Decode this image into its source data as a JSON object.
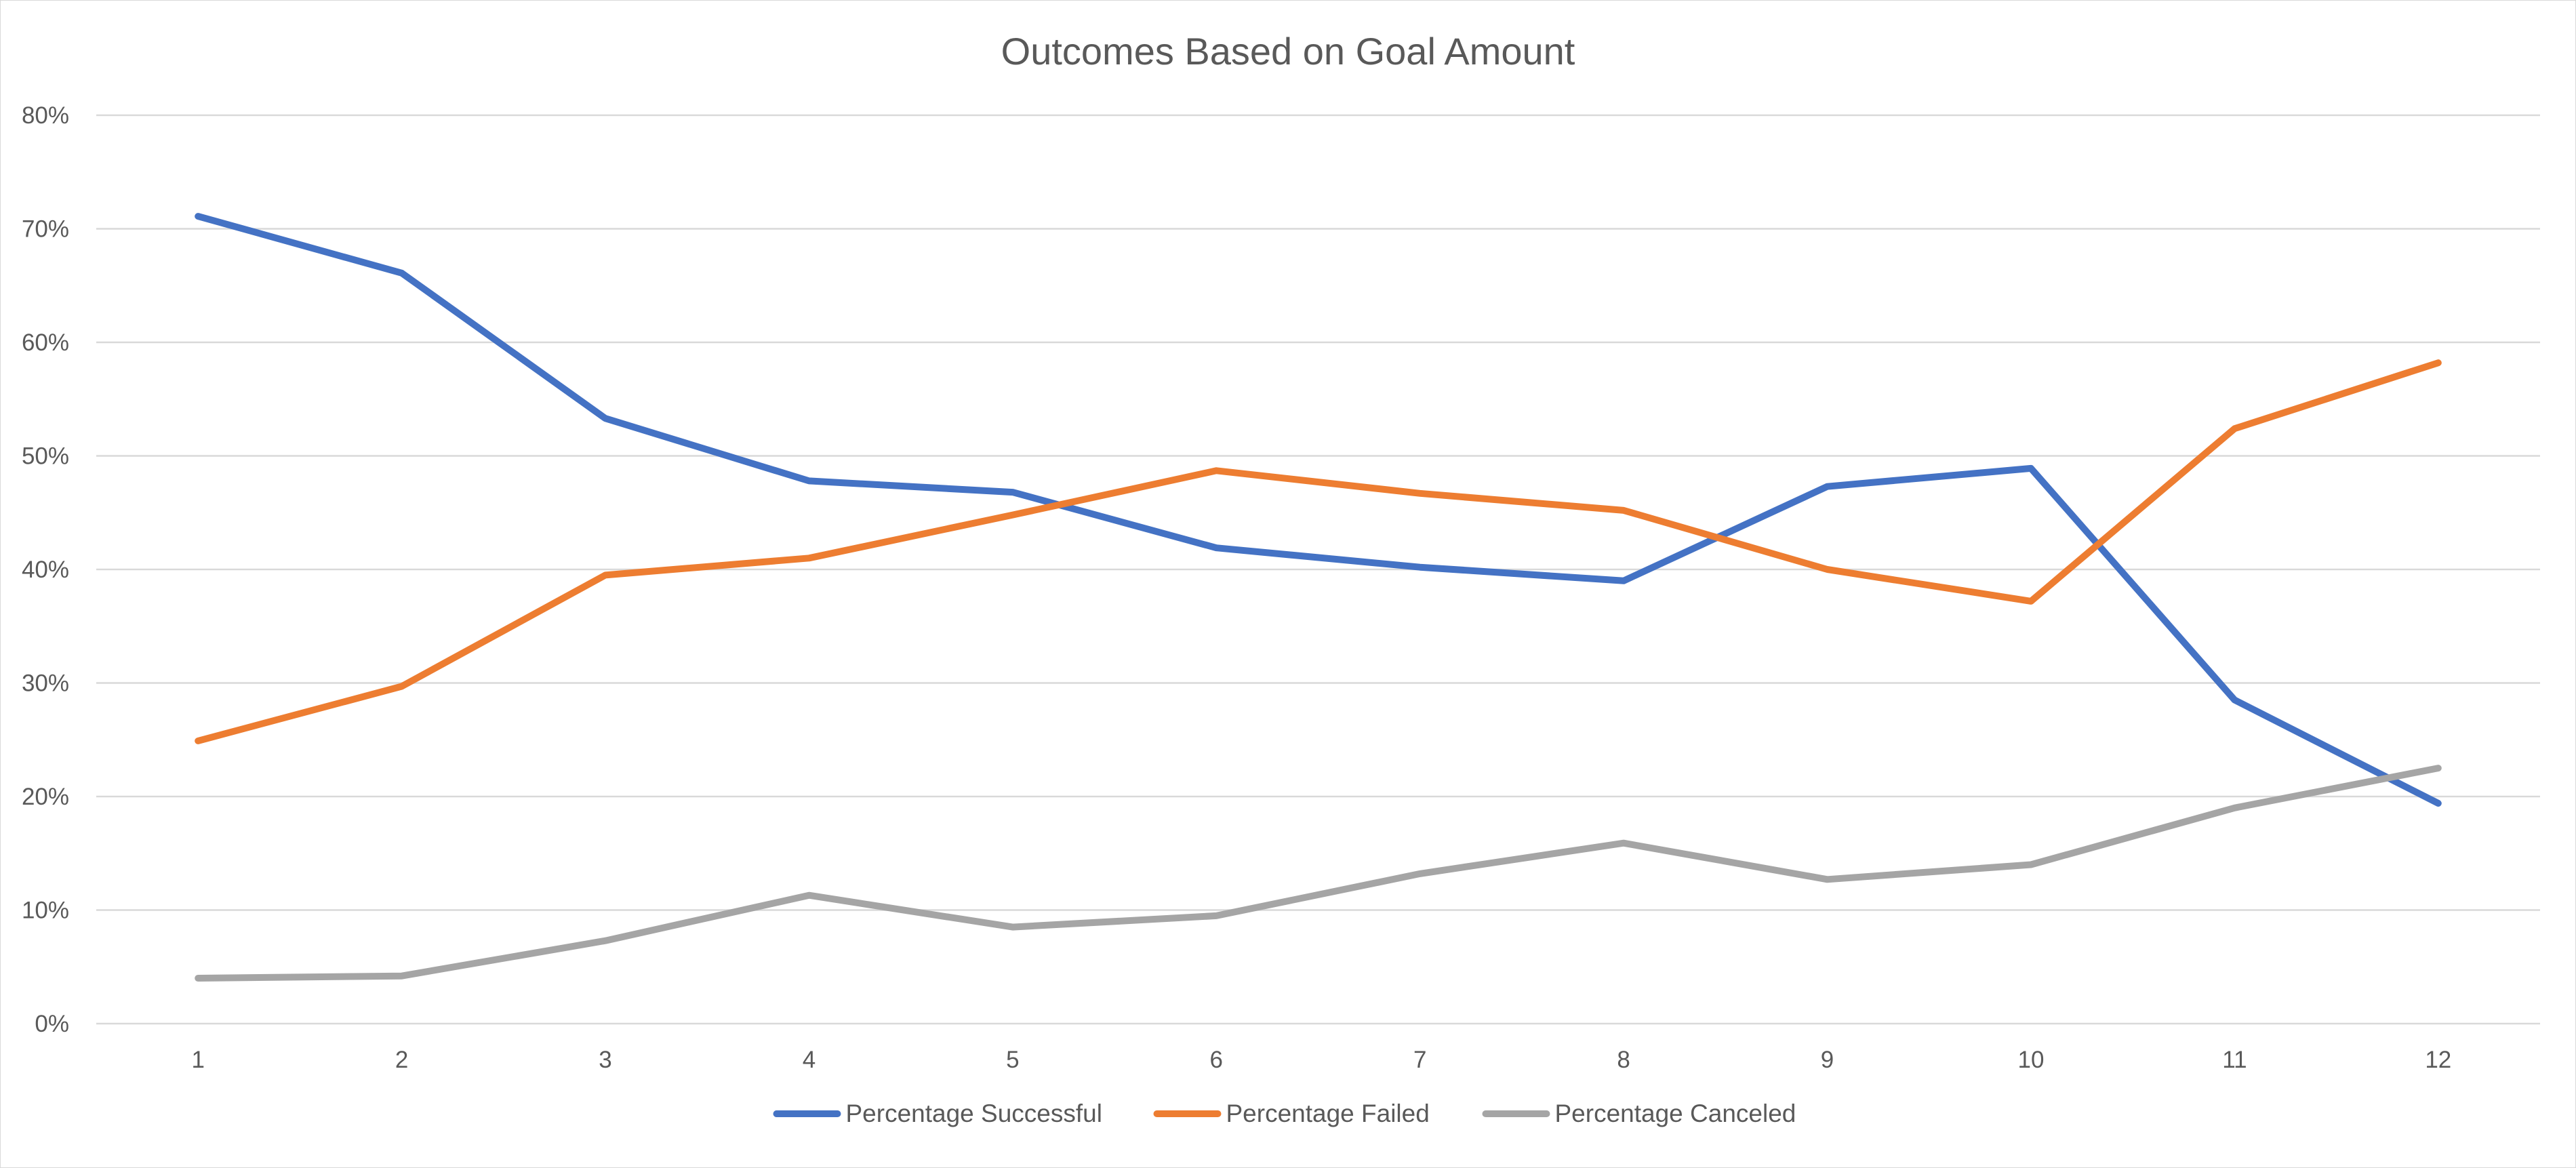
{
  "chart_data": {
    "type": "line",
    "title": "Outcomes Based on Goal Amount",
    "xlabel": "",
    "ylabel": "",
    "categories": [
      "1",
      "2",
      "3",
      "4",
      "5",
      "6",
      "7",
      "8",
      "9",
      "10",
      "11",
      "12"
    ],
    "ylim": [
      0,
      0.8
    ],
    "y_ticks": [
      "0%",
      "10%",
      "20%",
      "30%",
      "40%",
      "50%",
      "60%",
      "70%",
      "80%"
    ],
    "grid": true,
    "legend_position": "bottom",
    "series": [
      {
        "name": "Percentage Successful",
        "color": "#4472c4",
        "values": [
          0.711,
          0.661,
          0.533,
          0.478,
          0.468,
          0.419,
          0.402,
          0.39,
          0.473,
          0.489,
          0.285,
          0.194
        ]
      },
      {
        "name": "Percentage Failed",
        "color": "#ed7d31",
        "values": [
          0.249,
          0.297,
          0.395,
          0.41,
          0.448,
          0.487,
          0.467,
          0.452,
          0.4,
          0.372,
          0.524,
          0.582
        ]
      },
      {
        "name": "Percentage Canceled",
        "color": "#a5a5a5",
        "values": [
          0.04,
          0.042,
          0.073,
          0.113,
          0.085,
          0.095,
          0.132,
          0.159,
          0.127,
          0.14,
          0.19,
          0.225
        ]
      }
    ]
  }
}
